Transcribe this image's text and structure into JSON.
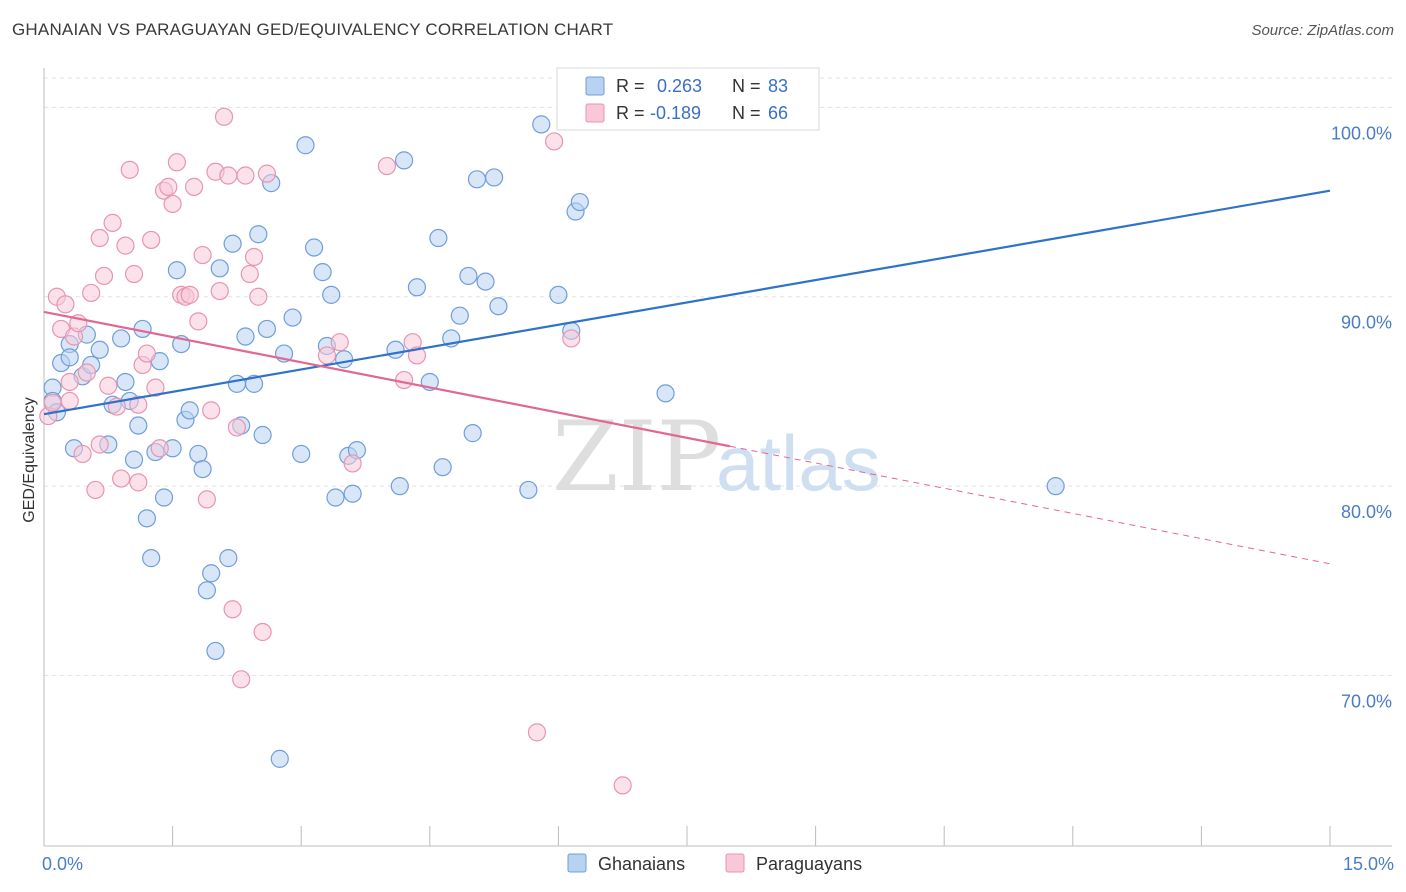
{
  "title": "GHANAIAN VS PARAGUAYAN GED/EQUIVALENCY CORRELATION CHART",
  "source": "Source: ZipAtlas.com",
  "watermark": {
    "zip": "ZIP",
    "atlas": "atlas"
  },
  "colors": {
    "ghanaian_fill": "#b8d2f2",
    "ghanaian_stroke": "#6f9fd8",
    "ghanaian_line": "#2f72c9",
    "paraguayan_fill": "#f8c8d8",
    "paraguayan_stroke": "#e895b0",
    "paraguayan_line": "#e06893",
    "tick_text": "#4a7cc7",
    "grid": "#e3e3e3"
  },
  "stats": {
    "r_label": "R =",
    "n_label": "N =",
    "ghanaian": {
      "r": "0.263",
      "n": "83"
    },
    "paraguayan": {
      "r": "-0.189",
      "n": "66"
    }
  },
  "chart_data": {
    "type": "scatter",
    "title": "GHANAIAN VS PARAGUAYAN GED/EQUIVALENCY CORRELATION CHART",
    "xlabel": "",
    "ylabel": "GED/Equivalency",
    "xlim": [
      0,
      15
    ],
    "ylim": [
      61,
      102.5
    ],
    "x_tick_labels": [
      {
        "value": 0,
        "label": "0.0%"
      },
      {
        "value": 15,
        "label": "15.0%"
      }
    ],
    "y_ticks": [
      {
        "value": 70,
        "label": "70.0%"
      },
      {
        "value": 80,
        "label": "80.0%"
      },
      {
        "value": 90,
        "label": "90.0%"
      },
      {
        "value": 100,
        "label": "100.0%"
      }
    ],
    "x_minor_ticks": [
      1.5,
      3.0,
      4.5,
      6.0,
      7.5,
      9.0,
      10.5,
      12.0,
      13.5,
      15.0
    ],
    "legend": [
      "Ghanaians",
      "Paraguayans"
    ],
    "series": [
      {
        "name": "Ghanaians",
        "trend": {
          "x0": 0.0,
          "y0": 83.8,
          "x1": 15.0,
          "y1": 95.6,
          "dash_from": null
        },
        "points": [
          [
            0.1,
            85.2
          ],
          [
            0.1,
            84.5
          ],
          [
            0.2,
            86.5
          ],
          [
            0.3,
            87.5
          ],
          [
            0.3,
            86.8
          ],
          [
            0.35,
            82.0
          ],
          [
            0.45,
            85.8
          ],
          [
            0.5,
            88.0
          ],
          [
            0.55,
            86.4
          ],
          [
            0.65,
            87.2
          ],
          [
            0.75,
            82.2
          ],
          [
            0.8,
            84.3
          ],
          [
            0.9,
            87.8
          ],
          [
            0.95,
            85.5
          ],
          [
            1.0,
            84.5
          ],
          [
            1.1,
            83.2
          ],
          [
            1.15,
            88.3
          ],
          [
            1.2,
            78.3
          ],
          [
            1.25,
            76.2
          ],
          [
            1.3,
            81.8
          ],
          [
            1.35,
            86.6
          ],
          [
            1.4,
            79.4
          ],
          [
            1.5,
            82.0
          ],
          [
            1.55,
            91.4
          ],
          [
            1.6,
            87.5
          ],
          [
            1.65,
            83.5
          ],
          [
            1.7,
            84.0
          ],
          [
            1.8,
            81.7
          ],
          [
            1.85,
            80.9
          ],
          [
            1.9,
            74.5
          ],
          [
            1.95,
            75.4
          ],
          [
            2.0,
            71.3
          ],
          [
            2.05,
            91.5
          ],
          [
            2.15,
            76.2
          ],
          [
            2.2,
            92.8
          ],
          [
            2.25,
            85.4
          ],
          [
            2.3,
            83.2
          ],
          [
            2.35,
            87.9
          ],
          [
            2.45,
            85.4
          ],
          [
            2.5,
            93.3
          ],
          [
            2.55,
            82.7
          ],
          [
            2.6,
            88.3
          ],
          [
            2.65,
            96.0
          ],
          [
            2.75,
            65.6
          ],
          [
            2.8,
            87.0
          ],
          [
            2.9,
            88.9
          ],
          [
            3.0,
            81.7
          ],
          [
            3.05,
            98.0
          ],
          [
            3.15,
            92.6
          ],
          [
            3.25,
            91.3
          ],
          [
            3.3,
            87.4
          ],
          [
            3.35,
            90.1
          ],
          [
            3.4,
            79.4
          ],
          [
            3.5,
            86.7
          ],
          [
            3.55,
            81.6
          ],
          [
            3.6,
            79.6
          ],
          [
            3.65,
            81.9
          ],
          [
            4.1,
            87.2
          ],
          [
            4.15,
            80.0
          ],
          [
            4.2,
            97.2
          ],
          [
            4.35,
            90.5
          ],
          [
            4.5,
            85.5
          ],
          [
            4.6,
            93.1
          ],
          [
            4.65,
            81.0
          ],
          [
            4.75,
            87.8
          ],
          [
            4.85,
            89.0
          ],
          [
            4.95,
            91.1
          ],
          [
            5.0,
            82.8
          ],
          [
            5.05,
            96.2
          ],
          [
            5.15,
            90.8
          ],
          [
            5.25,
            96.3
          ],
          [
            5.3,
            89.5
          ],
          [
            5.65,
            79.8
          ],
          [
            5.8,
            99.1
          ],
          [
            6.0,
            90.1
          ],
          [
            6.15,
            88.2
          ],
          [
            6.2,
            94.5
          ],
          [
            6.25,
            95.0
          ],
          [
            6.45,
            100.0
          ],
          [
            7.25,
            84.9
          ],
          [
            11.8,
            80.0
          ],
          [
            0.15,
            83.9
          ],
          [
            1.05,
            81.4
          ]
        ]
      },
      {
        "name": "Paraguayans",
        "trend": {
          "x0": 0.0,
          "y0": 89.2,
          "x1": 15.0,
          "y1": 75.9,
          "dash_from": 8.0
        },
        "points": [
          [
            0.05,
            83.7
          ],
          [
            0.1,
            84.4
          ],
          [
            0.15,
            90.0
          ],
          [
            0.2,
            88.3
          ],
          [
            0.25,
            89.6
          ],
          [
            0.3,
            84.5
          ],
          [
            0.35,
            87.9
          ],
          [
            0.4,
            88.6
          ],
          [
            0.45,
            81.7
          ],
          [
            0.5,
            86.0
          ],
          [
            0.55,
            90.2
          ],
          [
            0.6,
            79.8
          ],
          [
            0.65,
            82.2
          ],
          [
            0.65,
            93.1
          ],
          [
            0.7,
            91.1
          ],
          [
            0.75,
            85.3
          ],
          [
            0.8,
            93.9
          ],
          [
            0.85,
            84.2
          ],
          [
            0.9,
            80.4
          ],
          [
            0.95,
            92.7
          ],
          [
            1.0,
            96.7
          ],
          [
            1.05,
            91.2
          ],
          [
            1.1,
            80.2
          ],
          [
            1.15,
            86.4
          ],
          [
            1.2,
            87.0
          ],
          [
            1.25,
            93.0
          ],
          [
            1.3,
            85.2
          ],
          [
            1.35,
            82.0
          ],
          [
            1.4,
            95.6
          ],
          [
            1.45,
            95.8
          ],
          [
            1.5,
            94.9
          ],
          [
            1.55,
            97.1
          ],
          [
            1.6,
            90.1
          ],
          [
            1.65,
            90.0
          ],
          [
            1.7,
            90.1
          ],
          [
            1.75,
            95.8
          ],
          [
            1.8,
            88.7
          ],
          [
            1.85,
            92.2
          ],
          [
            1.9,
            79.3
          ],
          [
            1.95,
            84.0
          ],
          [
            2.0,
            96.6
          ],
          [
            2.05,
            90.3
          ],
          [
            2.1,
            99.5
          ],
          [
            2.15,
            96.4
          ],
          [
            2.2,
            73.5
          ],
          [
            2.25,
            83.1
          ],
          [
            2.3,
            69.8
          ],
          [
            2.35,
            96.4
          ],
          [
            2.4,
            91.2
          ],
          [
            2.45,
            92.1
          ],
          [
            2.5,
            90.0
          ],
          [
            2.55,
            72.3
          ],
          [
            2.6,
            96.5
          ],
          [
            3.3,
            86.9
          ],
          [
            3.45,
            87.6
          ],
          [
            3.6,
            81.2
          ],
          [
            4.0,
            96.9
          ],
          [
            4.2,
            85.6
          ],
          [
            4.3,
            87.6
          ],
          [
            4.35,
            86.9
          ],
          [
            5.75,
            67.0
          ],
          [
            5.95,
            98.2
          ],
          [
            6.15,
            87.8
          ],
          [
            6.75,
            64.2
          ],
          [
            0.3,
            85.5
          ],
          [
            1.1,
            84.3
          ]
        ]
      }
    ]
  }
}
